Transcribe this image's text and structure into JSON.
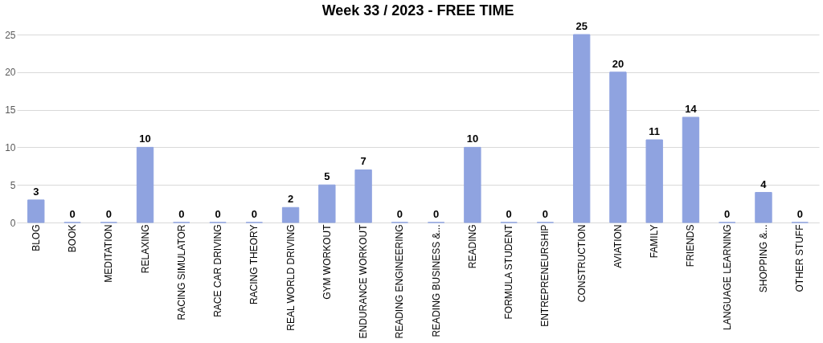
{
  "chart_data": {
    "type": "bar",
    "title": "Week 33 / 2023 - FREE TIME",
    "categories": [
      "BLOG",
      "BOOK",
      "MEDITATION",
      "RELAXING",
      "RACING SIMULATOR",
      "RACE CAR DRIVING",
      "RACING THEORY",
      "REAL WORLD DRIVING",
      "GYM WORKOUT",
      "ENDURANCE WORKOUT",
      "READING ENGINEERING",
      "READING BUSINESS &...",
      "READING",
      "FORMULA STUDENT",
      "ENTREPRENEURSHIP",
      "CONSTRUCTION",
      "AVIATION",
      "FAMILY",
      "FRIENDS",
      "LANGUAGE LEARNING",
      "SHOPPING &...",
      "OTHER STUFF"
    ],
    "values": [
      3,
      0,
      0,
      10,
      0,
      0,
      0,
      2,
      5,
      7,
      0,
      0,
      10,
      0,
      0,
      25,
      20,
      11,
      14,
      0,
      4,
      0
    ],
    "color": "#8fa3e0",
    "ylim": [
      0,
      25
    ],
    "yticks": [
      0,
      5,
      10,
      15,
      20,
      25
    ],
    "grid": "y",
    "data_labels": true
  }
}
